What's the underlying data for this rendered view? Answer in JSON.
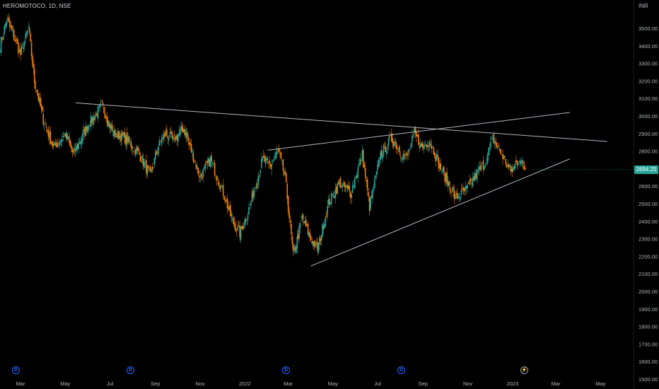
{
  "header": {
    "title": "HEROMOTOCO, 1D, NSE"
  },
  "axis_unit": "INR",
  "current_price_label": "2694.25",
  "events": [
    {
      "icon": "earnings-icon",
      "glyph": "D"
    },
    {
      "icon": "earnings-icon",
      "glyph": "D"
    },
    {
      "icon": "earnings-icon",
      "glyph": "D"
    },
    {
      "icon": "earnings-icon",
      "glyph": "D"
    },
    {
      "icon": "dividend-icon",
      "glyph": "⚡"
    }
  ],
  "colors": {
    "up": "#26a69a",
    "down": "#f57c00",
    "line": "#b2b5be",
    "grid": "#161616"
  },
  "chart_data": {
    "type": "candlestick",
    "title": "HEROMOTOCO, 1D, NSE",
    "ylabel": "INR",
    "ylim": [
      1500,
      3600
    ],
    "y_ticks": [
      1500,
      1600,
      1700,
      1800,
      1900,
      2000,
      2100,
      2200,
      2300,
      2400,
      2500,
      2600,
      2700,
      2800,
      2900,
      3000,
      3100,
      3200,
      3300,
      3400,
      3500
    ],
    "x_tick_labels": [
      "Mar",
      "May",
      "Jul",
      "Sep",
      "Nov",
      "2022",
      "Mar",
      "May",
      "Jul",
      "Sep",
      "Nov",
      "2023",
      "Mar",
      "May"
    ],
    "x_range": [
      "2021-02-01",
      "2023-06-15"
    ],
    "x_ticks": [
      "2021-03-01",
      "2021-05-01",
      "2021-07-01",
      "2021-09-01",
      "2021-11-01",
      "2022-01-01",
      "2022-03-01",
      "2022-05-01",
      "2022-07-01",
      "2022-09-01",
      "2022-11-01",
      "2023-01-01",
      "2023-03-01",
      "2023-05-01"
    ],
    "price_path": [
      [
        "2021-02-01",
        3400
      ],
      [
        "2021-02-10",
        3550
      ],
      [
        "2021-02-20",
        3450
      ],
      [
        "2021-03-01",
        3350
      ],
      [
        "2021-03-12",
        3500
      ],
      [
        "2021-03-20",
        3200
      ],
      [
        "2021-04-01",
        2980
      ],
      [
        "2021-04-15",
        2820
      ],
      [
        "2021-05-01",
        2900
      ],
      [
        "2021-05-12",
        2780
      ],
      [
        "2021-06-01",
        2950
      ],
      [
        "2021-06-20",
        3060
      ],
      [
        "2021-07-05",
        2900
      ],
      [
        "2021-07-20",
        2880
      ],
      [
        "2021-08-10",
        2780
      ],
      [
        "2021-08-25",
        2660
      ],
      [
        "2021-09-05",
        2830
      ],
      [
        "2021-09-15",
        2900
      ],
      [
        "2021-09-25",
        2860
      ],
      [
        "2021-10-10",
        2930
      ],
      [
        "2021-10-20",
        2800
      ],
      [
        "2021-11-01",
        2650
      ],
      [
        "2021-11-15",
        2750
      ],
      [
        "2021-12-01",
        2580
      ],
      [
        "2021-12-15",
        2400
      ],
      [
        "2021-12-25",
        2330
      ],
      [
        "2022-01-05",
        2450
      ],
      [
        "2022-01-15",
        2600
      ],
      [
        "2022-01-25",
        2750
      ],
      [
        "2022-02-05",
        2720
      ],
      [
        "2022-02-15",
        2800
      ],
      [
        "2022-02-25",
        2650
      ],
      [
        "2022-03-08",
        2200
      ],
      [
        "2022-03-20",
        2420
      ],
      [
        "2022-04-01",
        2300
      ],
      [
        "2022-04-10",
        2240
      ],
      [
        "2022-04-25",
        2500
      ],
      [
        "2022-05-10",
        2620
      ],
      [
        "2022-05-25",
        2560
      ],
      [
        "2022-06-10",
        2780
      ],
      [
        "2022-06-20",
        2480
      ],
      [
        "2022-07-05",
        2780
      ],
      [
        "2022-07-20",
        2870
      ],
      [
        "2022-08-01",
        2800
      ],
      [
        "2022-08-10",
        2760
      ],
      [
        "2022-08-20",
        2900
      ],
      [
        "2022-08-30",
        2820
      ],
      [
        "2022-09-10",
        2860
      ],
      [
        "2022-09-25",
        2700
      ],
      [
        "2022-10-05",
        2620
      ],
      [
        "2022-10-15",
        2530
      ],
      [
        "2022-10-30",
        2580
      ],
      [
        "2022-11-15",
        2680
      ],
      [
        "2022-11-25",
        2740
      ],
      [
        "2022-12-05",
        2870
      ],
      [
        "2022-12-20",
        2760
      ],
      [
        "2022-12-30",
        2680
      ],
      [
        "2023-01-10",
        2760
      ],
      [
        "2023-01-18",
        2694.25
      ]
    ],
    "last_price": 2694.25,
    "trendlines": [
      {
        "from": [
          "2021-05-15",
          3075
        ],
        "to": [
          "2023-05-10",
          2855
        ]
      },
      {
        "from": [
          "2022-02-01",
          2805
        ],
        "to": [
          "2023-03-20",
          3020
        ]
      },
      {
        "from": [
          "2022-04-01",
          2145
        ],
        "to": [
          "2023-03-20",
          2755
        ]
      }
    ]
  }
}
